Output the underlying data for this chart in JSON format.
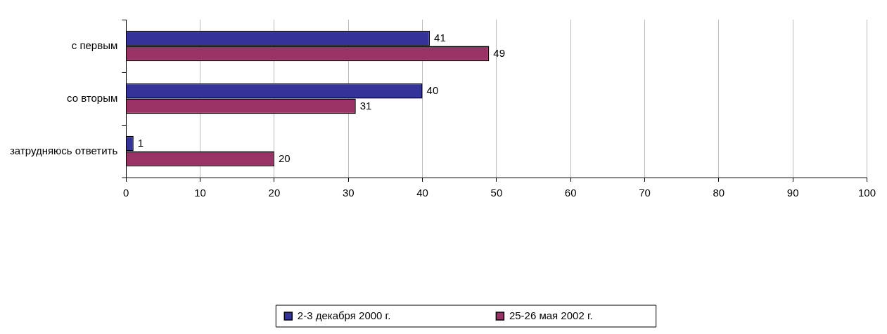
{
  "chart_data": {
    "type": "bar",
    "orientation": "horizontal",
    "categories": [
      "с первым",
      "со вторым",
      "затрудняюсь ответить"
    ],
    "series": [
      {
        "name": "2-3 декабря 2000 г.",
        "color": "#333399",
        "values": [
          41,
          40,
          1
        ]
      },
      {
        "name": "25-26 мая 2002 г.",
        "color": "#993366",
        "values": [
          49,
          31,
          20
        ]
      }
    ],
    "xlim": [
      0,
      100
    ],
    "xticks": [
      0,
      10,
      20,
      30,
      40,
      50,
      60,
      70,
      80,
      90,
      100
    ],
    "grid": "x",
    "legend": "bottom",
    "data_labels": true
  }
}
